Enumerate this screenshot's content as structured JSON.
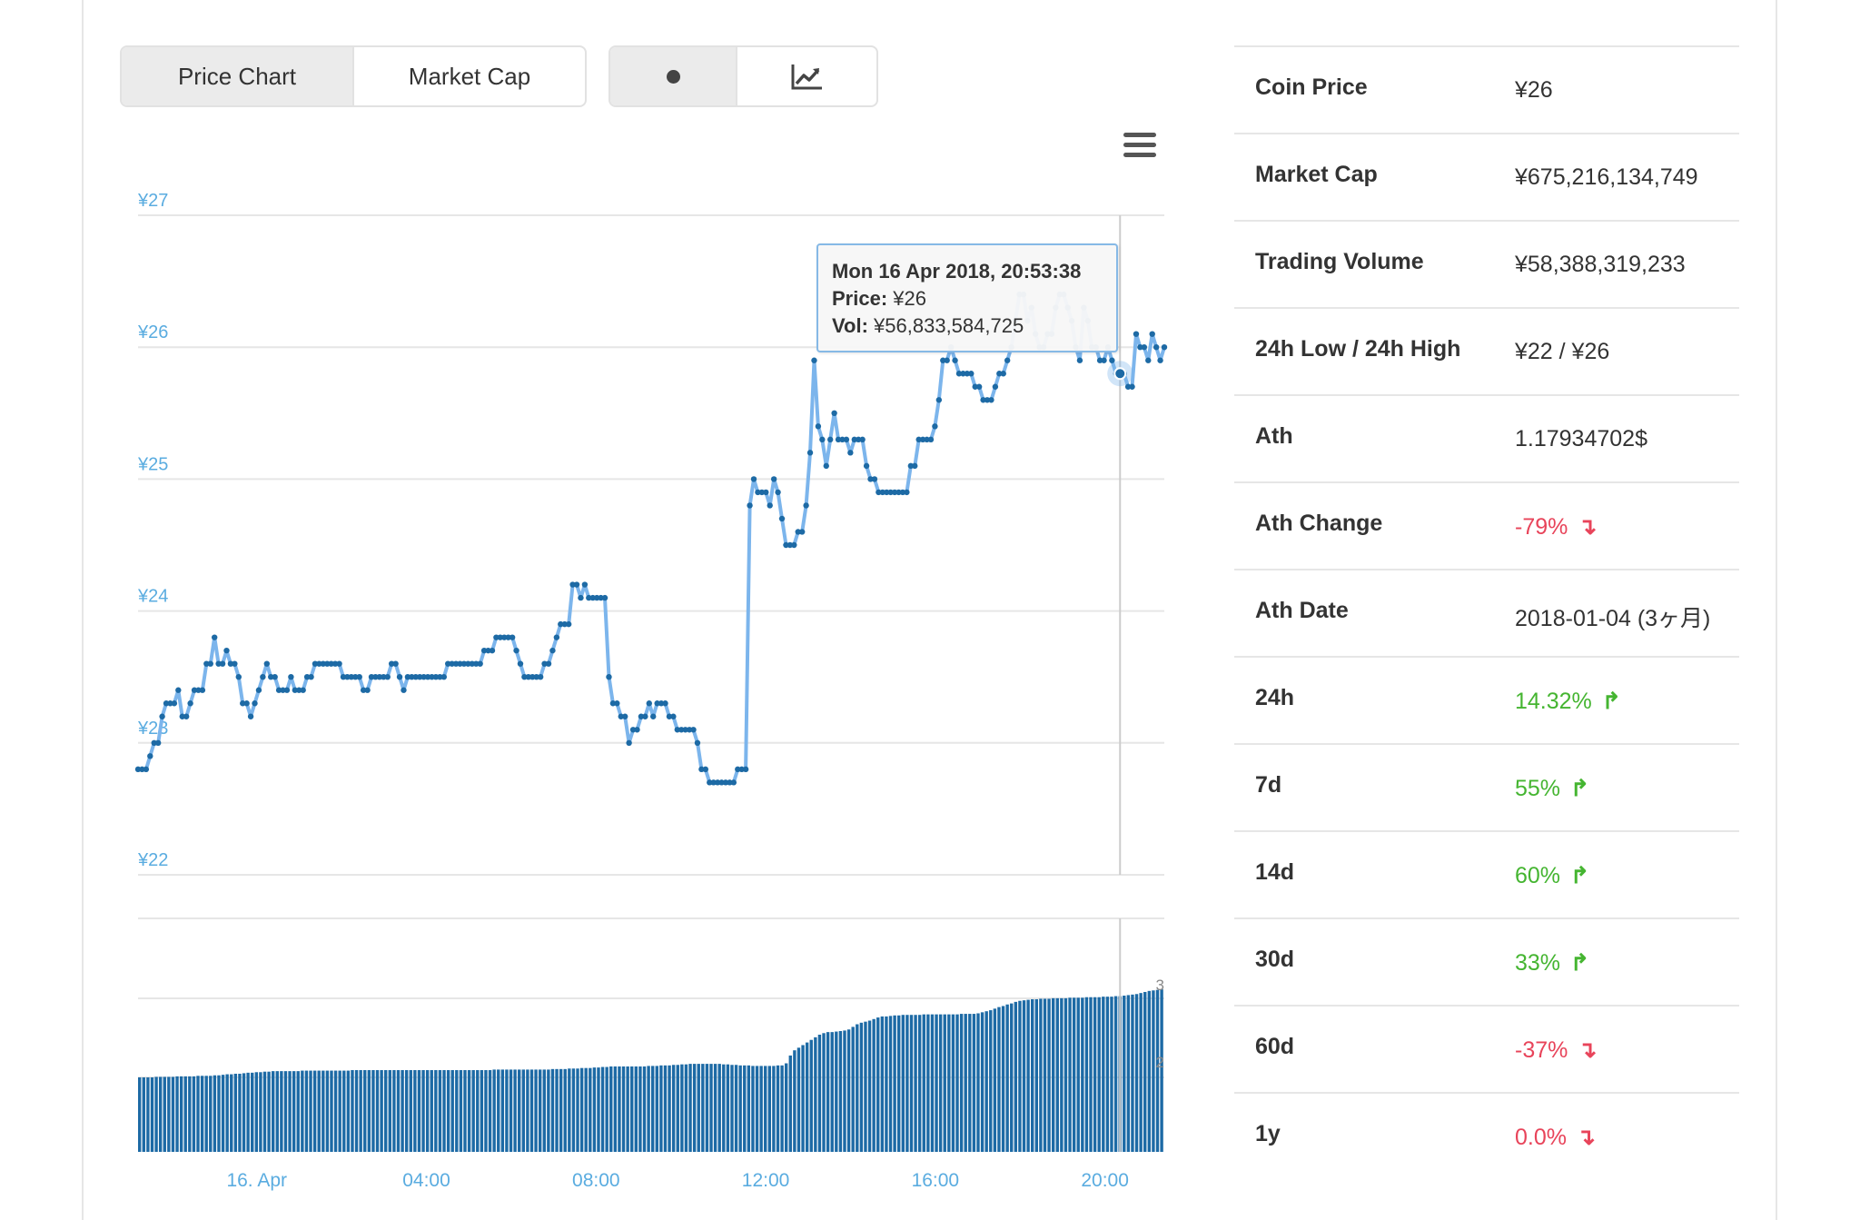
{
  "toggles": {
    "view": [
      {
        "label": "Price Chart",
        "active": true
      },
      {
        "label": "Market Cap",
        "active": false
      }
    ],
    "style": [
      {
        "icon": "dot-icon",
        "active": true
      },
      {
        "icon": "line-chart-icon",
        "active": false
      }
    ]
  },
  "tooltip": {
    "date": "Mon 16 Apr 2018, 20:53:38",
    "price_label": "Price:",
    "price_value": "¥26",
    "vol_label": "Vol:",
    "vol_value": "¥56,833,584,725"
  },
  "colors": {
    "line": "#7cb5ec",
    "marker": "#1d6aa5",
    "bars": "#1d6aa5",
    "axis_text": "#5aace0",
    "up": "#45b531",
    "down": "#e8445a"
  },
  "chart_data": {
    "type": "line",
    "title": "",
    "xlabel": "",
    "ylabel": "",
    "ylim": [
      22,
      27
    ],
    "y_ticks": [
      "¥27",
      "¥26",
      "¥25",
      "¥24",
      "¥23",
      "¥22"
    ],
    "x_ticks": [
      "16. Apr",
      "04:00",
      "08:00",
      "12:00",
      "16:00",
      "20:00"
    ],
    "x_range_hours": [
      -2.8,
      21.4
    ],
    "highlight_index": 244,
    "price": [
      22.8,
      22.8,
      22.8,
      22.9,
      23.0,
      23.0,
      23.2,
      23.3,
      23.3,
      23.3,
      23.4,
      23.2,
      23.2,
      23.3,
      23.4,
      23.4,
      23.4,
      23.6,
      23.6,
      23.8,
      23.6,
      23.6,
      23.7,
      23.6,
      23.6,
      23.5,
      23.3,
      23.3,
      23.2,
      23.3,
      23.4,
      23.5,
      23.6,
      23.5,
      23.5,
      23.4,
      23.4,
      23.4,
      23.5,
      23.4,
      23.4,
      23.4,
      23.5,
      23.5,
      23.6,
      23.6,
      23.6,
      23.6,
      23.6,
      23.6,
      23.6,
      23.5,
      23.5,
      23.5,
      23.5,
      23.5,
      23.4,
      23.4,
      23.5,
      23.5,
      23.5,
      23.5,
      23.5,
      23.6,
      23.6,
      23.5,
      23.4,
      23.5,
      23.5,
      23.5,
      23.5,
      23.5,
      23.5,
      23.5,
      23.5,
      23.5,
      23.5,
      23.6,
      23.6,
      23.6,
      23.6,
      23.6,
      23.6,
      23.6,
      23.6,
      23.6,
      23.7,
      23.7,
      23.7,
      23.8,
      23.8,
      23.8,
      23.8,
      23.8,
      23.7,
      23.6,
      23.5,
      23.5,
      23.5,
      23.5,
      23.5,
      23.6,
      23.6,
      23.7,
      23.8,
      23.9,
      23.9,
      23.9,
      24.2,
      24.2,
      24.1,
      24.2,
      24.1,
      24.1,
      24.1,
      24.1,
      24.1,
      23.5,
      23.3,
      23.3,
      23.2,
      23.2,
      23.0,
      23.1,
      23.1,
      23.2,
      23.2,
      23.3,
      23.2,
      23.3,
      23.3,
      23.3,
      23.2,
      23.2,
      23.1,
      23.1,
      23.1,
      23.1,
      23.1,
      23.0,
      22.8,
      22.8,
      22.7,
      22.7,
      22.7,
      22.7,
      22.7,
      22.7,
      22.7,
      22.8,
      22.8,
      22.8,
      24.8,
      25.0,
      24.9,
      24.9,
      24.9,
      24.8,
      25.0,
      24.9,
      24.7,
      24.5,
      24.5,
      24.5,
      24.6,
      24.6,
      24.8,
      25.2,
      25.9,
      25.4,
      25.3,
      25.1,
      25.3,
      25.5,
      25.3,
      25.3,
      25.3,
      25.2,
      25.3,
      25.3,
      25.3,
      25.1,
      25.0,
      25.0,
      24.9,
      24.9,
      24.9,
      24.9,
      24.9,
      24.9,
      24.9,
      24.9,
      25.1,
      25.1,
      25.3,
      25.3,
      25.3,
      25.3,
      25.4,
      25.6,
      25.9,
      25.9,
      26.0,
      25.9,
      25.8,
      25.8,
      25.8,
      25.8,
      25.7,
      25.7,
      25.6,
      25.6,
      25.6,
      25.7,
      25.8,
      25.8,
      25.9,
      26.0,
      26.2,
      26.4,
      26.4,
      26.2,
      26.3,
      26.1,
      26.0,
      26.0,
      26.1,
      26.1,
      26.3,
      26.4,
      26.4,
      26.3,
      26.2,
      26.0,
      25.9,
      26.3,
      26.2,
      26.0,
      26.0,
      25.9,
      25.9,
      26.0,
      25.9,
      25.8,
      25.8,
      25.8,
      25.7,
      25.7,
      26.1,
      26.0,
      26.0,
      25.9,
      26.1,
      26.0,
      25.9,
      26.0
    ],
    "volume": {
      "type": "bar",
      "ylim": [
        0,
        3
      ],
      "y_ticks_visible": [
        "3",
        "2"
      ],
      "values": [
        1.43,
        1.43,
        1.43,
        1.43,
        1.44,
        1.44,
        1.44,
        1.44,
        1.44,
        1.45,
        1.45,
        1.45,
        1.45,
        1.45,
        1.46,
        1.46,
        1.46,
        1.46,
        1.47,
        1.47,
        1.48,
        1.49,
        1.49,
        1.5,
        1.5,
        1.51,
        1.52,
        1.52,
        1.53,
        1.53,
        1.54,
        1.54,
        1.55,
        1.55,
        1.55,
        1.55,
        1.55,
        1.55,
        1.55,
        1.56,
        1.56,
        1.56,
        1.56,
        1.56,
        1.56,
        1.56,
        1.56,
        1.56,
        1.56,
        1.56,
        1.56,
        1.57,
        1.57,
        1.57,
        1.57,
        1.57,
        1.57,
        1.57,
        1.57,
        1.57,
        1.57,
        1.57,
        1.57,
        1.57,
        1.57,
        1.57,
        1.57,
        1.57,
        1.57,
        1.57,
        1.57,
        1.57,
        1.57,
        1.57,
        1.57,
        1.57,
        1.57,
        1.57,
        1.57,
        1.57,
        1.57,
        1.57,
        1.57,
        1.57,
        1.57,
        1.58,
        1.58,
        1.58,
        1.58,
        1.58,
        1.58,
        1.58,
        1.58,
        1.58,
        1.58,
        1.58,
        1.58,
        1.58,
        1.58,
        1.59,
        1.59,
        1.59,
        1.59,
        1.6,
        1.6,
        1.6,
        1.61,
        1.61,
        1.61,
        1.62,
        1.62,
        1.63,
        1.63,
        1.64,
        1.64,
        1.64,
        1.64,
        1.64,
        1.64,
        1.64,
        1.64,
        1.64,
        1.65,
        1.65,
        1.65,
        1.66,
        1.66,
        1.66,
        1.67,
        1.67,
        1.68,
        1.68,
        1.69,
        1.69,
        1.69,
        1.69,
        1.69,
        1.69,
        1.69,
        1.69,
        1.68,
        1.68,
        1.67,
        1.67,
        1.66,
        1.66,
        1.66,
        1.65,
        1.65,
        1.65,
        1.65,
        1.65,
        1.65,
        1.66,
        1.66,
        1.7,
        1.85,
        1.95,
        2.0,
        2.05,
        2.1,
        2.15,
        2.2,
        2.25,
        2.28,
        2.3,
        2.3,
        2.31,
        2.32,
        2.33,
        2.35,
        2.4,
        2.45,
        2.48,
        2.5,
        2.52,
        2.55,
        2.58,
        2.6,
        2.6,
        2.61,
        2.62,
        2.62,
        2.63,
        2.63,
        2.63,
        2.63,
        2.63,
        2.64,
        2.64,
        2.64,
        2.64,
        2.64,
        2.64,
        2.64,
        2.64,
        2.64,
        2.65,
        2.65,
        2.65,
        2.65,
        2.66,
        2.68,
        2.7,
        2.72,
        2.75,
        2.78,
        2.8,
        2.83,
        2.85,
        2.88,
        2.9,
        2.91,
        2.92,
        2.93,
        2.93,
        2.94,
        2.94,
        2.94,
        2.95,
        2.95,
        2.95,
        2.95,
        2.96,
        2.96,
        2.96,
        2.96,
        2.97,
        2.97,
        2.97,
        2.97,
        2.98,
        2.98,
        2.98,
        2.99,
        2.99,
        3.0,
        3.01,
        3.02,
        3.03,
        3.05,
        3.07,
        3.09,
        3.1,
        3.11,
        3.12
      ]
    }
  },
  "stats": [
    {
      "label": "Coin Price",
      "value": "¥26",
      "trend": "neutral"
    },
    {
      "label": "Market Cap",
      "value": "¥675,216,134,749",
      "trend": "neutral"
    },
    {
      "label": "Trading Volume",
      "value": "¥58,388,319,233",
      "trend": "neutral"
    },
    {
      "label": "24h Low / 24h High",
      "value": "¥22 / ¥26",
      "trend": "neutral"
    },
    {
      "label": "Ath",
      "value": "1.17934702$",
      "trend": "neutral"
    },
    {
      "label": "Ath Change",
      "value": "-79%",
      "trend": "down"
    },
    {
      "label": "Ath Date",
      "value": "2018-01-04 (3ヶ月)",
      "trend": "neutral"
    },
    {
      "label": "24h",
      "value": "14.32%",
      "trend": "up"
    },
    {
      "label": "7d",
      "value": "55%",
      "trend": "up"
    },
    {
      "label": "14d",
      "value": "60%",
      "trend": "up"
    },
    {
      "label": "30d",
      "value": "33%",
      "trend": "up"
    },
    {
      "label": "60d",
      "value": "-37%",
      "trend": "down"
    },
    {
      "label": "1y",
      "value": "0.0%",
      "trend": "down"
    }
  ]
}
